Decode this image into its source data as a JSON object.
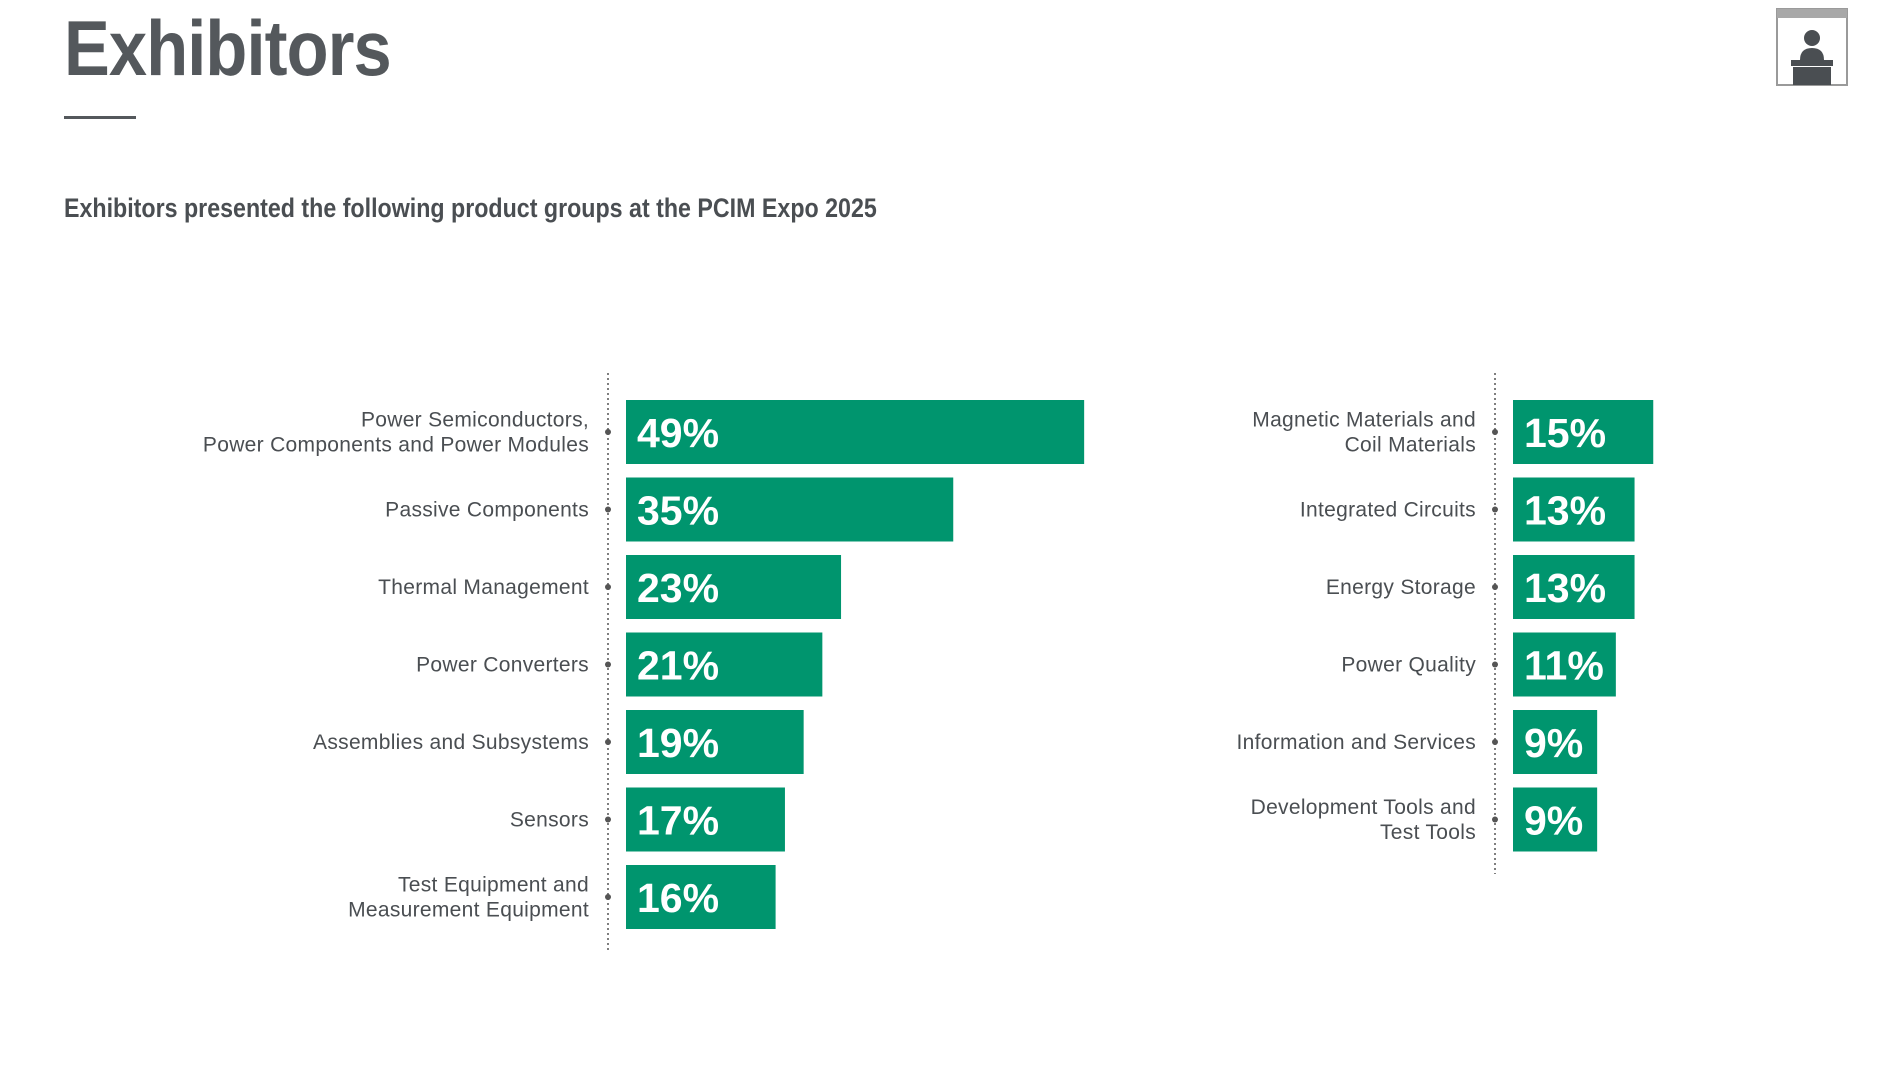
{
  "title": "Exhibitors",
  "subtitle": "Exhibitors presented the following product groups at the PCIM Expo 2025",
  "colors": {
    "bar": "#00956e",
    "text": "#4a4e52",
    "title": "#54585c",
    "axis": "#555555"
  },
  "icon": "exhibitor-booth-icon",
  "chart_data": [
    {
      "type": "bar",
      "orientation": "horizontal",
      "categories": [
        "Power Semiconductors,\nPower Components and Power Modules",
        "Passive Components",
        "Thermal Management",
        "Power Converters",
        "Assemblies and Subsystems",
        "Sensors",
        "Test Equipment and\nMeasurement Equipment"
      ],
      "values": [
        49,
        35,
        23,
        21,
        19,
        17,
        16
      ],
      "value_labels": [
        "49%",
        "35%",
        "23%",
        "21%",
        "19%",
        "17%",
        "16%"
      ],
      "unit": "%"
    },
    {
      "type": "bar",
      "orientation": "horizontal",
      "categories": [
        "Magnetic Materials and\nCoil Materials",
        "Integrated Circuits",
        "Energy Storage",
        "Power Quality",
        "Information and Services",
        "Development Tools and\nTest Tools"
      ],
      "values": [
        15,
        13,
        13,
        11,
        9,
        9
      ],
      "value_labels": [
        "15%",
        "13%",
        "13%",
        "11%",
        "9%",
        "9%"
      ],
      "unit": "%"
    }
  ]
}
